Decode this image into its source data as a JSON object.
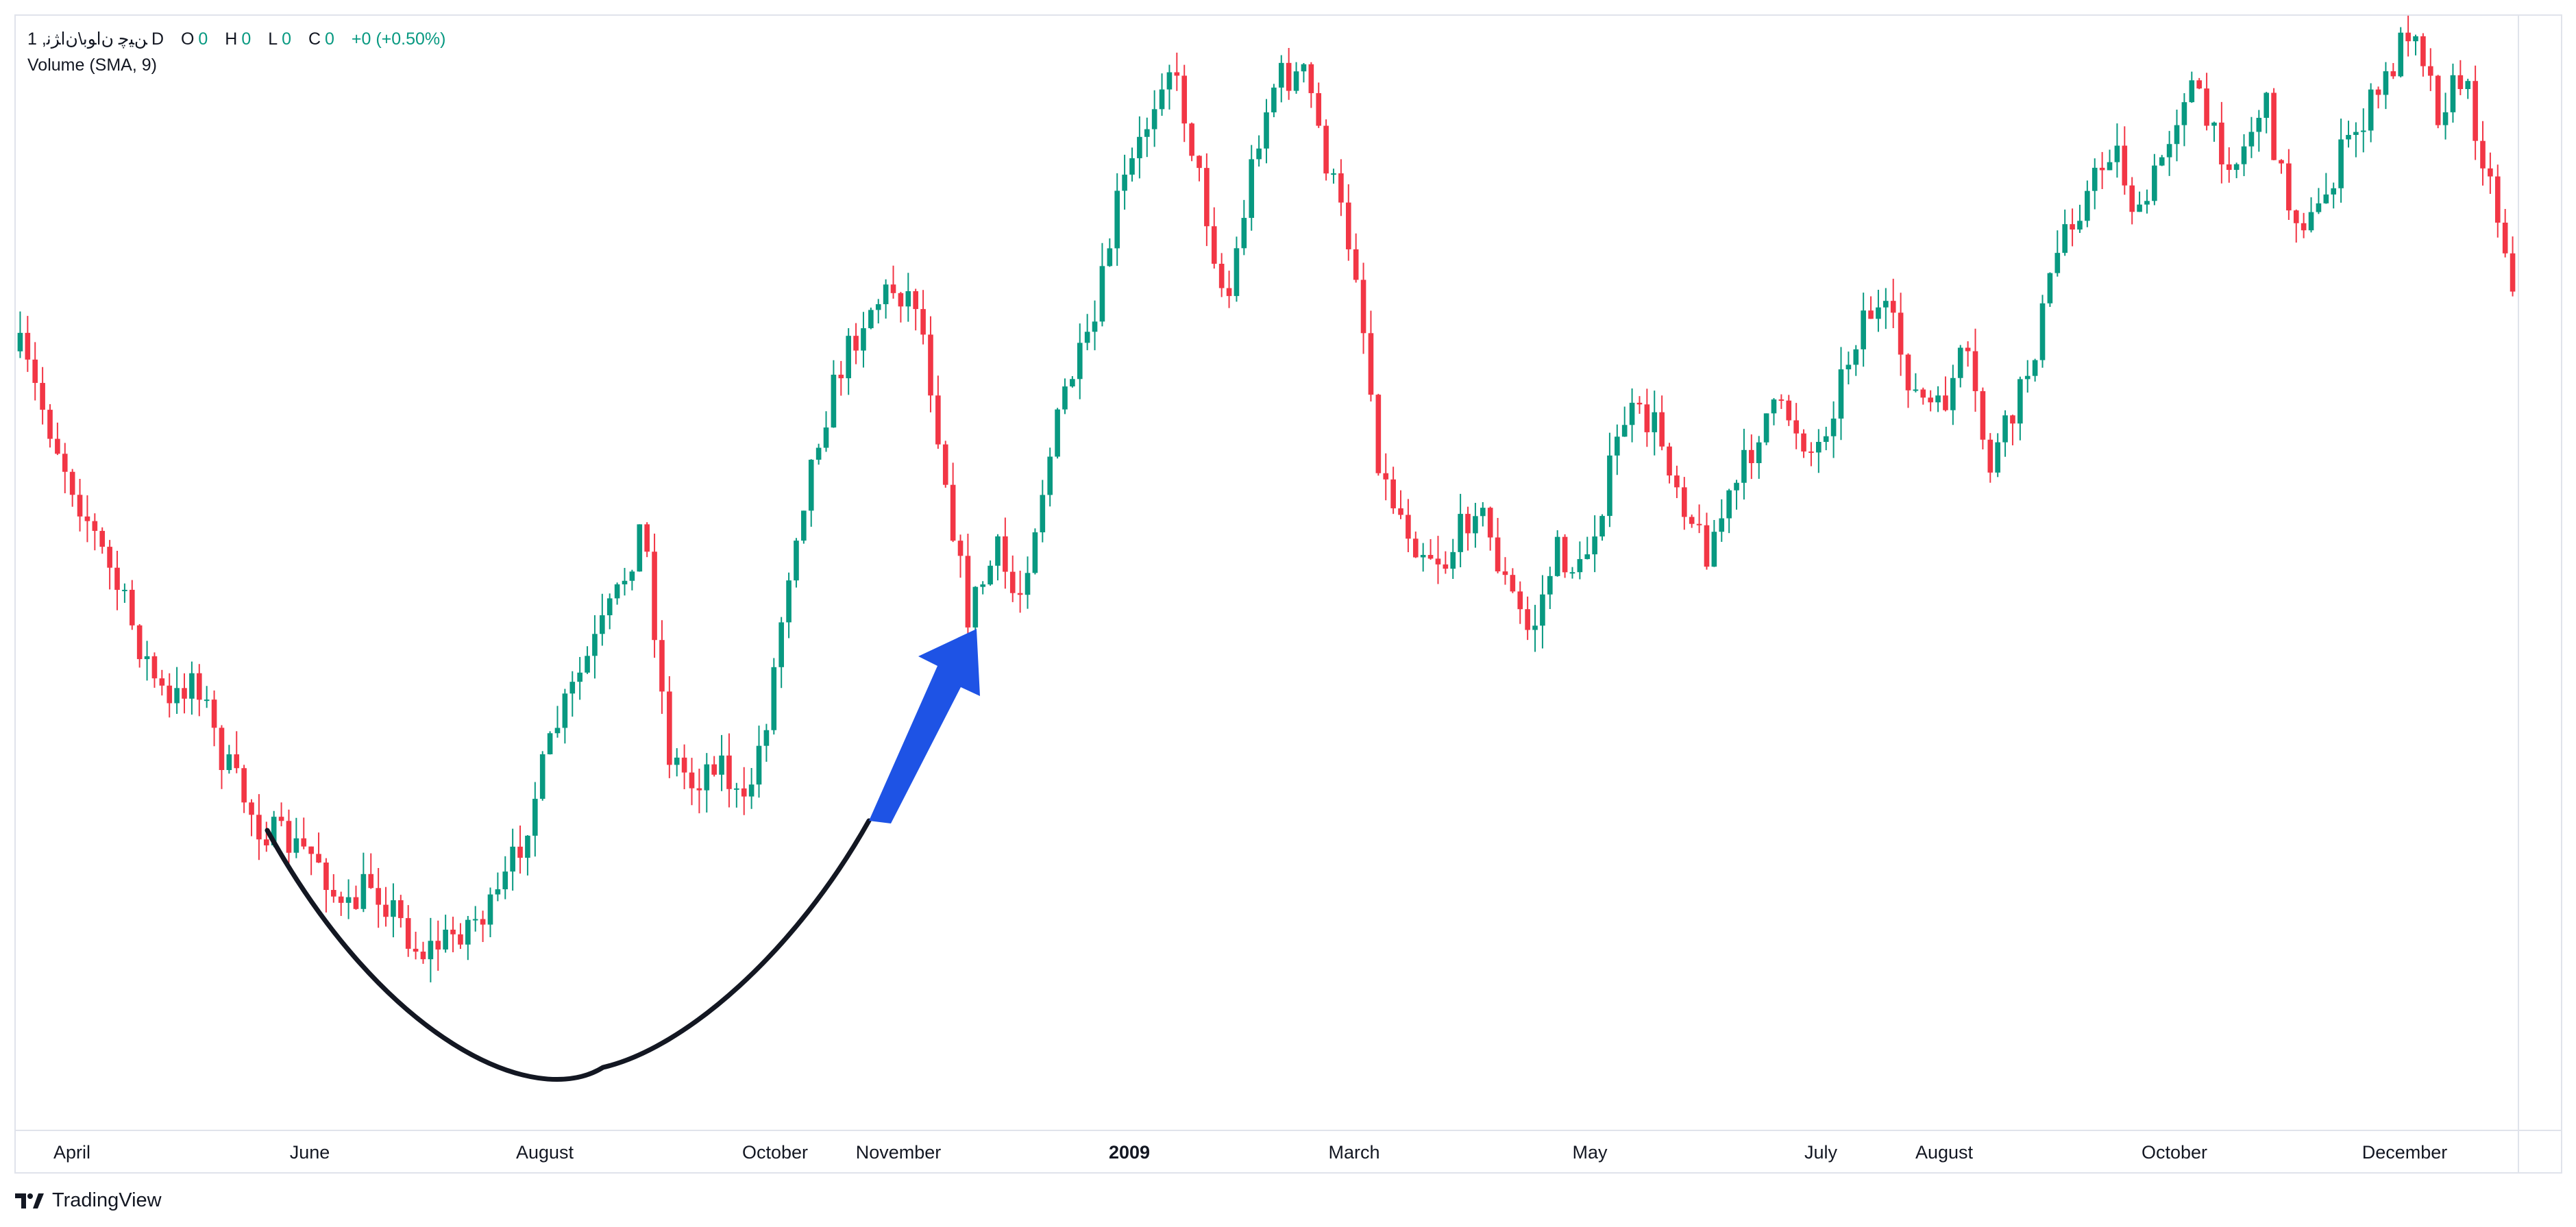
{
  "legend": {
    "symbol": "1 ,ﻦﯿﭼ ﻥﺍﻮﺑ\\ﻥﺍﮋﻧ",
    "interval": "D",
    "o_label": "O",
    "o_value": "0",
    "h_label": "H",
    "h_value": "0",
    "l_label": "L",
    "l_value": "0",
    "c_label": "C",
    "c_value": "0",
    "change": "+0 (+0.50%)",
    "volume": "Volume (SMA, 9)"
  },
  "chart_data": {
    "type": "candlestick",
    "x_axis_ticks": [
      {
        "label": "April",
        "bold": false
      },
      {
        "label": "June",
        "bold": false
      },
      {
        "label": "August",
        "bold": false
      },
      {
        "label": "October",
        "bold": false
      },
      {
        "label": "November",
        "bold": false
      },
      {
        "label": "2009",
        "bold": true
      },
      {
        "label": "March",
        "bold": false
      },
      {
        "label": "May",
        "bold": false
      },
      {
        "label": "July",
        "bold": false
      },
      {
        "label": "August",
        "bold": false
      },
      {
        "label": "October",
        "bold": false
      },
      {
        "label": "December",
        "bold": false
      }
    ],
    "price_path_relative": [
      [
        0,
        0.32
      ],
      [
        10,
        0.44
      ],
      [
        20,
        0.55
      ],
      [
        25,
        0.61
      ],
      [
        30,
        0.66
      ],
      [
        35,
        0.62
      ],
      [
        40,
        0.7
      ],
      [
        48,
        0.77
      ],
      [
        55,
        0.79
      ],
      [
        60,
        0.8
      ],
      [
        65,
        0.86
      ],
      [
        70,
        0.82
      ],
      [
        75,
        0.85
      ],
      [
        80,
        0.89
      ],
      [
        85,
        0.88
      ],
      [
        90,
        0.86
      ],
      [
        95,
        0.85
      ],
      [
        100,
        0.79
      ],
      [
        108,
        0.67
      ],
      [
        115,
        0.6
      ],
      [
        120,
        0.55
      ],
      [
        125,
        0.48
      ],
      [
        130,
        0.7
      ],
      [
        135,
        0.73
      ],
      [
        140,
        0.7
      ],
      [
        145,
        0.76
      ],
      [
        150,
        0.66
      ],
      [
        155,
        0.5
      ],
      [
        160,
        0.4
      ],
      [
        165,
        0.33
      ],
      [
        170,
        0.28
      ],
      [
        175,
        0.26
      ],
      [
        180,
        0.27
      ],
      [
        190,
        0.57
      ],
      [
        196,
        0.51
      ],
      [
        200,
        0.56
      ],
      [
        205,
        0.45
      ],
      [
        210,
        0.35
      ],
      [
        215,
        0.31
      ],
      [
        220,
        0.18
      ],
      [
        225,
        0.12
      ],
      [
        230,
        0.04
      ],
      [
        234,
        0.1
      ],
      [
        238,
        0.19
      ],
      [
        242,
        0.28
      ],
      [
        248,
        0.12
      ],
      [
        252,
        0.06
      ],
      [
        258,
        0.06
      ],
      [
        262,
        0.14
      ],
      [
        268,
        0.24
      ],
      [
        273,
        0.44
      ],
      [
        280,
        0.5
      ],
      [
        286,
        0.52
      ],
      [
        292,
        0.46
      ],
      [
        298,
        0.54
      ],
      [
        303,
        0.59
      ],
      [
        308,
        0.51
      ],
      [
        313,
        0.53
      ],
      [
        318,
        0.45
      ],
      [
        322,
        0.38
      ],
      [
        328,
        0.39
      ],
      [
        333,
        0.45
      ],
      [
        338,
        0.51
      ],
      [
        345,
        0.44
      ],
      [
        350,
        0.38
      ],
      [
        355,
        0.38
      ],
      [
        360,
        0.42
      ],
      [
        365,
        0.35
      ],
      [
        370,
        0.28
      ],
      [
        375,
        0.29
      ],
      [
        380,
        0.36
      ],
      [
        385,
        0.38
      ],
      [
        390,
        0.32
      ],
      [
        395,
        0.43
      ],
      [
        400,
        0.38
      ],
      [
        405,
        0.3
      ],
      [
        410,
        0.2
      ],
      [
        415,
        0.17
      ],
      [
        420,
        0.12
      ],
      [
        425,
        0.2
      ],
      [
        430,
        0.13
      ],
      [
        435,
        0.06
      ],
      [
        440,
        0.12
      ],
      [
        445,
        0.14
      ],
      [
        450,
        0.08
      ],
      [
        455,
        0.18
      ],
      [
        460,
        0.2
      ],
      [
        465,
        0.14
      ],
      [
        470,
        0.1
      ],
      [
        475,
        0.06
      ],
      [
        480,
        0.0
      ],
      [
        485,
        0.09
      ],
      [
        490,
        0.06
      ],
      [
        495,
        0.15
      ],
      [
        500,
        0.25
      ]
    ],
    "annotations": [
      "rounded-bottom-arc",
      "upward-arrow"
    ]
  },
  "colors": {
    "up": "#089981",
    "down": "#f23645",
    "arrow": "#1e53e5",
    "arc": "#131722",
    "grid_border": "#e0e3eb"
  },
  "brand": {
    "name": "TradingView"
  },
  "icons": {
    "brand_logo": "tradingview-logo-icon"
  }
}
